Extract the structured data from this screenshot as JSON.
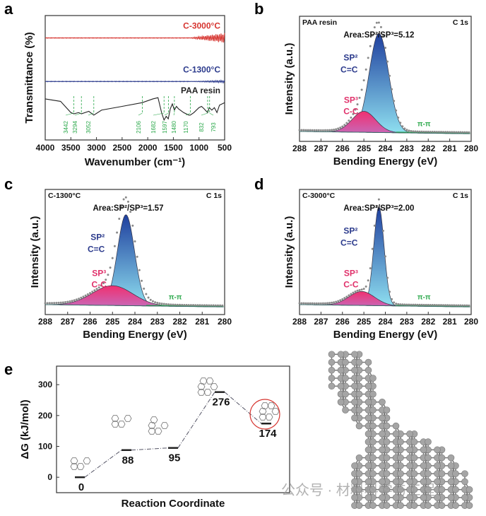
{
  "panel_labels": [
    "a",
    "b",
    "c",
    "d",
    "e"
  ],
  "watermark": "公众号 · 材料科学与工程",
  "colors": {
    "red": "#d6342f",
    "blue": "#2b3a8c",
    "green": "#2aa84a",
    "pink": "#e0306a",
    "grey": "#888888"
  },
  "chart_data": [
    {
      "id": "a",
      "type": "line",
      "xlabel": "Wavenumber (cm⁻¹)",
      "ylabel": "Transmittance (%)",
      "xlim": [
        4000,
        500
      ],
      "xticks": [
        4000,
        3500,
        3000,
        2500,
        2000,
        1500,
        1000,
        500
      ],
      "series": [
        {
          "name": "C-3000°C",
          "offset": 0.82
        },
        {
          "name": "C-1300°C",
          "offset": 0.47
        },
        {
          "name": "PAA resin",
          "x": [
            4000,
            3700,
            3500,
            3442,
            3350,
            3294,
            3150,
            3052,
            2900,
            2500,
            2106,
            1900,
            1800,
            1730,
            1682,
            1640,
            1600,
            1560,
            1520,
            1480,
            1440,
            1400,
            1300,
            1200,
            1170,
            1100,
            1000,
            950,
            900,
            832,
            800,
            750,
            700,
            650,
            600,
            500
          ],
          "y": [
            0.33,
            0.31,
            0.22,
            0.21,
            0.22,
            0.21,
            0.23,
            0.2,
            0.24,
            0.27,
            0.3,
            0.33,
            0.34,
            0.22,
            0.16,
            0.19,
            0.17,
            0.25,
            0.29,
            0.24,
            0.27,
            0.25,
            0.22,
            0.2,
            0.2,
            0.22,
            0.26,
            0.27,
            0.25,
            0.22,
            0.26,
            0.24,
            0.26,
            0.22,
            0.28,
            0.3
          ]
        }
      ],
      "peaks": [
        "3442",
        "3294",
        "3052",
        "2106",
        "1682",
        "1597",
        "1480",
        "1170",
        "832",
        "793"
      ]
    },
    {
      "id": "b",
      "type": "area",
      "sample": "PAA resin",
      "core": "C 1s",
      "area_text": "Area:SP²/SP³=5.12",
      "xlabel": "Bending Energy (eV)",
      "ylabel": "Intensity (a.u.)",
      "xlim": [
        288,
        280
      ],
      "xticks": [
        288,
        287,
        286,
        285,
        284,
        283,
        282,
        281,
        280
      ],
      "sp2": {
        "label1": "SP²",
        "label2": "C=C",
        "center": 284.3,
        "amp": 0.85,
        "sigma": 0.45
      },
      "sp3": {
        "label1": "SP³",
        "label2": "C-C",
        "center": 285.0,
        "amp": 0.18,
        "sigma": 0.55
      },
      "pipi": "π-π"
    },
    {
      "id": "c",
      "type": "area",
      "sample": "C-1300°C",
      "core": "C 1s",
      "area_text": "Area:SP²/SP³=1.57",
      "xlabel": "Bending Energy (eV)",
      "ylabel": "Intensity (a.u.)",
      "xlim": [
        288,
        280
      ],
      "xticks": [
        288,
        287,
        286,
        285,
        284,
        283,
        282,
        281,
        280
      ],
      "sp2": {
        "label1": "SP²",
        "label2": "C=C",
        "center": 284.4,
        "amp": 0.78,
        "sigma": 0.38
      },
      "sp3": {
        "label1": "SP³",
        "label2": "C-C",
        "center": 285.0,
        "amp": 0.17,
        "sigma": 0.9
      },
      "pipi": "π-π"
    },
    {
      "id": "d",
      "type": "area",
      "sample": "C-3000°C",
      "core": "C 1s",
      "area_text": "Area:SP²/SP³=2.00",
      "xlabel": "Bending Energy (eV)",
      "ylabel": "Intensity (a.u.)",
      "xlim": [
        288,
        280
      ],
      "xticks": [
        288,
        287,
        286,
        285,
        284,
        283,
        282,
        281,
        280
      ],
      "sp2": {
        "label1": "SP²",
        "label2": "C=C",
        "center": 284.3,
        "amp": 0.85,
        "sigma": 0.24
      },
      "sp3": {
        "label1": "SP³",
        "label2": "C-C",
        "center": 285.1,
        "amp": 0.12,
        "sigma": 0.6
      },
      "pipi": "π-π"
    },
    {
      "id": "e",
      "type": "line",
      "xlabel": "Reaction Coordinate",
      "ylabel": "ΔG (kJ/mol)",
      "ylim": [
        -50,
        360
      ],
      "yticks": [
        0,
        100,
        200,
        300
      ],
      "stages": [
        1,
        2,
        3,
        4,
        5
      ],
      "values": [
        0,
        88,
        95,
        276,
        174
      ],
      "labels": [
        "0",
        "88",
        "95",
        "276",
        "174"
      ]
    }
  ]
}
